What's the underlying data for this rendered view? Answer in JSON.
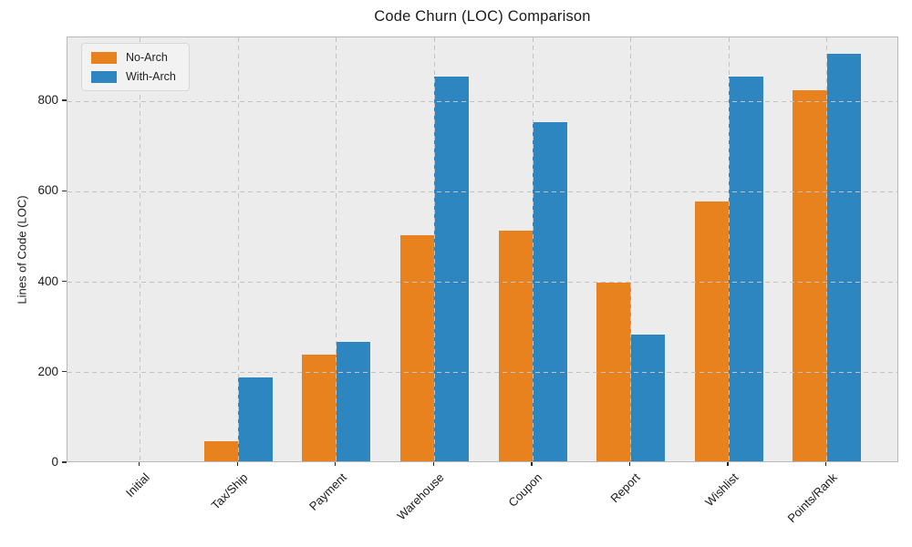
{
  "chart_data": {
    "type": "bar",
    "title": "Code Churn (LOC) Comparison",
    "xlabel": "",
    "ylabel": "Lines of Code (LOC)",
    "categories": [
      "Initial",
      "Tax/Ship",
      "Payment",
      "Warehouse",
      "Coupon",
      "Report",
      "Wishlist",
      "Points/Rank"
    ],
    "series": [
      {
        "name": "No-Arch",
        "color": "#e8821e",
        "values": [
          0,
          45,
          235,
          500,
          510,
          395,
          575,
          820
        ]
      },
      {
        "name": "With-Arch",
        "color": "#2e86c1",
        "values": [
          0,
          185,
          265,
          850,
          750,
          280,
          850,
          900
        ]
      }
    ],
    "y_ticks": [
      0,
      200,
      400,
      600,
      800
    ],
    "ylim": [
      0,
      941
    ],
    "grid": "dashed gridlines on both axes, drawn above bars",
    "legend_position": "upper left",
    "x_label_rotation_deg": 45,
    "colors": {
      "plot_background": "#ececec",
      "figure_background": "#ffffff",
      "grid_line": "#c3c3c3",
      "spine": "#b9b9b9",
      "text": "#1a1a1a"
    }
  }
}
